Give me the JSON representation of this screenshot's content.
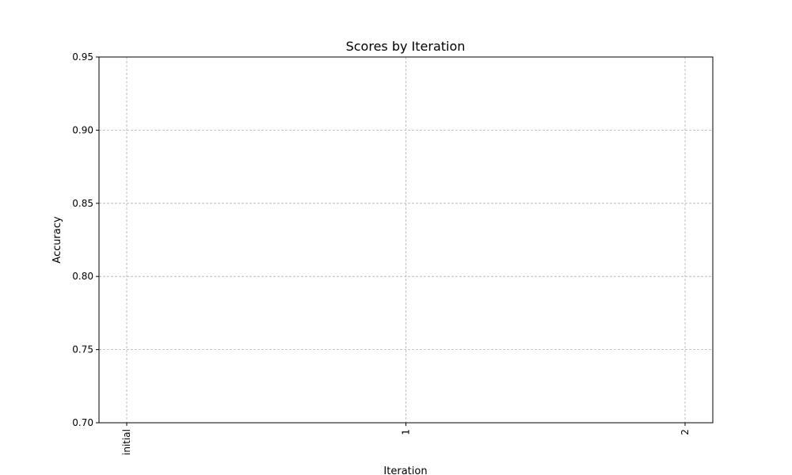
{
  "chart_data": {
    "type": "line",
    "title": "Scores by Iteration",
    "xlabel": "Iteration",
    "ylabel": "Accuracy",
    "categories": [
      "initial",
      "1",
      "2"
    ],
    "ylim": [
      0.7,
      0.95
    ],
    "yticks": [
      "0.70",
      "0.75",
      "0.80",
      "0.85",
      "0.90",
      "0.95"
    ],
    "grid": true,
    "series": []
  }
}
